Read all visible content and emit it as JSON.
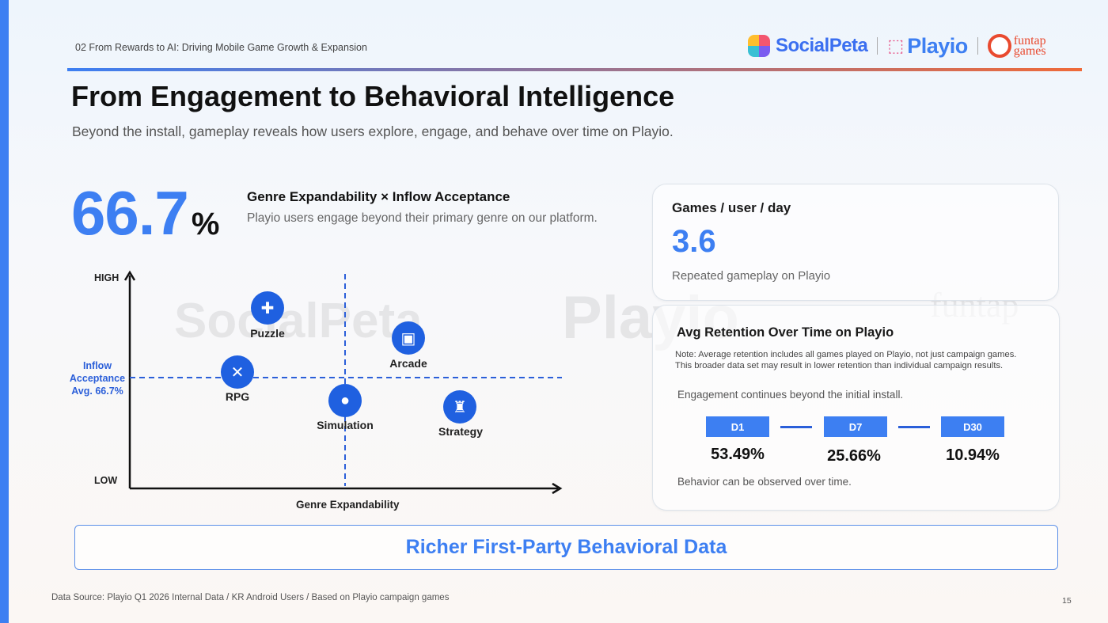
{
  "header": {
    "section_label": "02 From Rewards to AI: Driving Mobile Game Growth & Expansion",
    "logos": [
      "SocialPeta",
      "Playio",
      "funtap games"
    ],
    "funtap_line1": "funtap",
    "funtap_line2": "games",
    "accent_color": "#3d7ff2"
  },
  "title": "From Engagement to Behavioral Intelligence",
  "subtitle": "Beyond the install, gameplay reveals how users explore, engage, and behave over time on Playio.",
  "headline_stat": {
    "value": "66.7",
    "unit": "%",
    "heading": "Genre Expandability × Inflow Acceptance",
    "description": "Playio users engage beyond their primary genre on our platform."
  },
  "quadrant": {
    "y_high": "HIGH",
    "y_low": "LOW",
    "x_label": "Genre Expandability",
    "avg_line_label": "Inflow Acceptance Avg. 66.7%",
    "genres": [
      {
        "name": "Puzzle",
        "icon": "puzzle-icon"
      },
      {
        "name": "Arcade",
        "icon": "handheld-console-icon"
      },
      {
        "name": "RPG",
        "icon": "crossed-swords-icon"
      },
      {
        "name": "Simulation",
        "icon": "person-icon"
      },
      {
        "name": "Strategy",
        "icon": "chess-rook-icon"
      }
    ]
  },
  "games_card": {
    "heading": "Games / user / day",
    "value": "3.6",
    "description": "Repeated gameplay on Playio"
  },
  "retention_card": {
    "heading": "Avg Retention Over Time on Playio",
    "note": "Note: Average retention includes all games played on Playio, not just campaign games. This broader data set may result in lower retention than individual campaign results.",
    "engagement_text": "Engagement continues beyond the initial install.",
    "items": [
      {
        "label": "D1",
        "value": "53.49%"
      },
      {
        "label": "D7",
        "value": "25.66%"
      },
      {
        "label": "D30",
        "value": "10.94%"
      }
    ],
    "footer": "Behavior can be observed over time."
  },
  "banner": "Richer First-Party Behavioral Data",
  "footer": {
    "source": "Data Source: Playio Q1 2026 Internal Data / KR Android Users / Based on Playio campaign games",
    "page_number": "15"
  }
}
